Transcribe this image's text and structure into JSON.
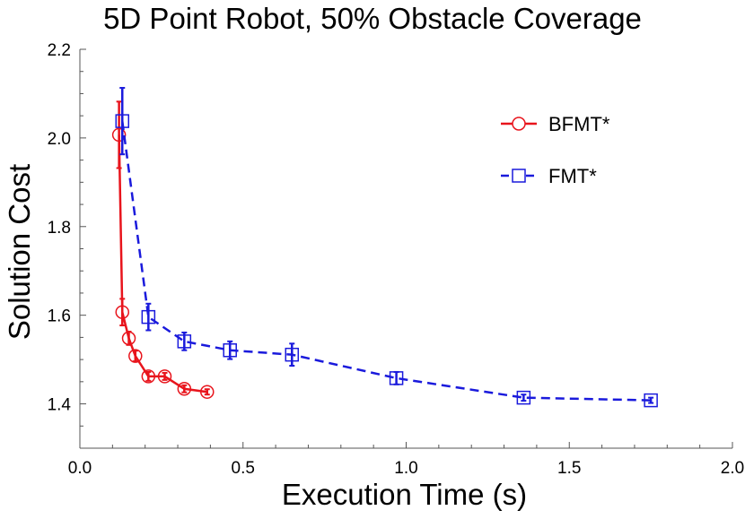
{
  "chart_data": {
    "type": "line",
    "title": "5D Point Robot, 50% Obstacle Coverage",
    "xlabel": "Execution Time (s)",
    "ylabel": "Solution Cost",
    "xlim": [
      0,
      2.0
    ],
    "ylim": [
      1.3,
      2.2
    ],
    "xticks": [
      "0.0",
      "0.5",
      "1.0",
      "1.5",
      "2.0"
    ],
    "yticks": [
      "1.4",
      "1.6",
      "1.8",
      "2.0",
      "2.2"
    ],
    "grid": false,
    "legend_position": "top-right",
    "series": [
      {
        "name": "BFMT*",
        "color": "#e8141c",
        "marker": "circle",
        "line_style": "solid",
        "x": [
          0.12,
          0.13,
          0.15,
          0.17,
          0.21,
          0.26,
          0.32,
          0.39
        ],
        "y": [
          2.007,
          1.607,
          1.548,
          1.508,
          1.462,
          1.462,
          1.434,
          1.427
        ],
        "err": [
          0.075,
          0.03,
          0.015,
          0.012,
          0.01,
          0.008,
          0.008,
          0.006
        ]
      },
      {
        "name": "FMT*",
        "color": "#1a1adc",
        "marker": "square",
        "line_style": "dashed",
        "x": [
          0.13,
          0.21,
          0.32,
          0.46,
          0.65,
          0.97,
          1.36,
          1.75
        ],
        "y": [
          2.038,
          1.596,
          1.541,
          1.521,
          1.511,
          1.458,
          1.414,
          1.408
        ],
        "err": [
          0.075,
          0.03,
          0.02,
          0.02,
          0.025,
          0.014,
          0.007,
          0.006
        ]
      }
    ]
  }
}
